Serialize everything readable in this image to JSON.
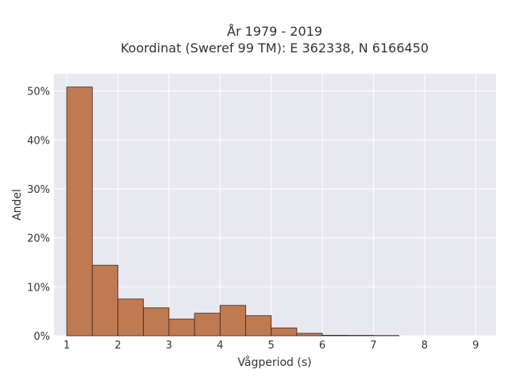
{
  "chart_data": {
    "type": "bar",
    "title_line1": "År 1979 - 2019",
    "title_line2": "Koordinat (Sweref 99 TM): E 362338, N 6166450",
    "xlabel": "Vågperiod (s)",
    "ylabel": "Andel",
    "xlim": [
      0.75,
      9.4
    ],
    "ylim": [
      0,
      53.5
    ],
    "x_ticks": [
      1,
      2,
      3,
      4,
      5,
      6,
      7,
      8,
      9
    ],
    "x_tick_labels": [
      "1",
      "2",
      "3",
      "4",
      "5",
      "6",
      "7",
      "8",
      "9"
    ],
    "y_ticks": [
      0,
      10,
      20,
      30,
      40,
      50
    ],
    "y_tick_labels": [
      "0%",
      "10%",
      "20%",
      "30%",
      "40%",
      "50%"
    ],
    "bin_edges": [
      1,
      1.5,
      2,
      2.5,
      3,
      3.5,
      4,
      4.5,
      5,
      5.5,
      6,
      6.5,
      7,
      7.5
    ],
    "values": [
      50.8,
      14.4,
      7.5,
      5.7,
      3.4,
      4.6,
      6.2,
      4.1,
      1.6,
      0.5,
      0.1,
      0.08,
      0.05
    ],
    "bar_color": "#c07a52",
    "bar_edge_color": "#3a2418",
    "plot_bg": "#e8e8f0",
    "grid": true
  }
}
